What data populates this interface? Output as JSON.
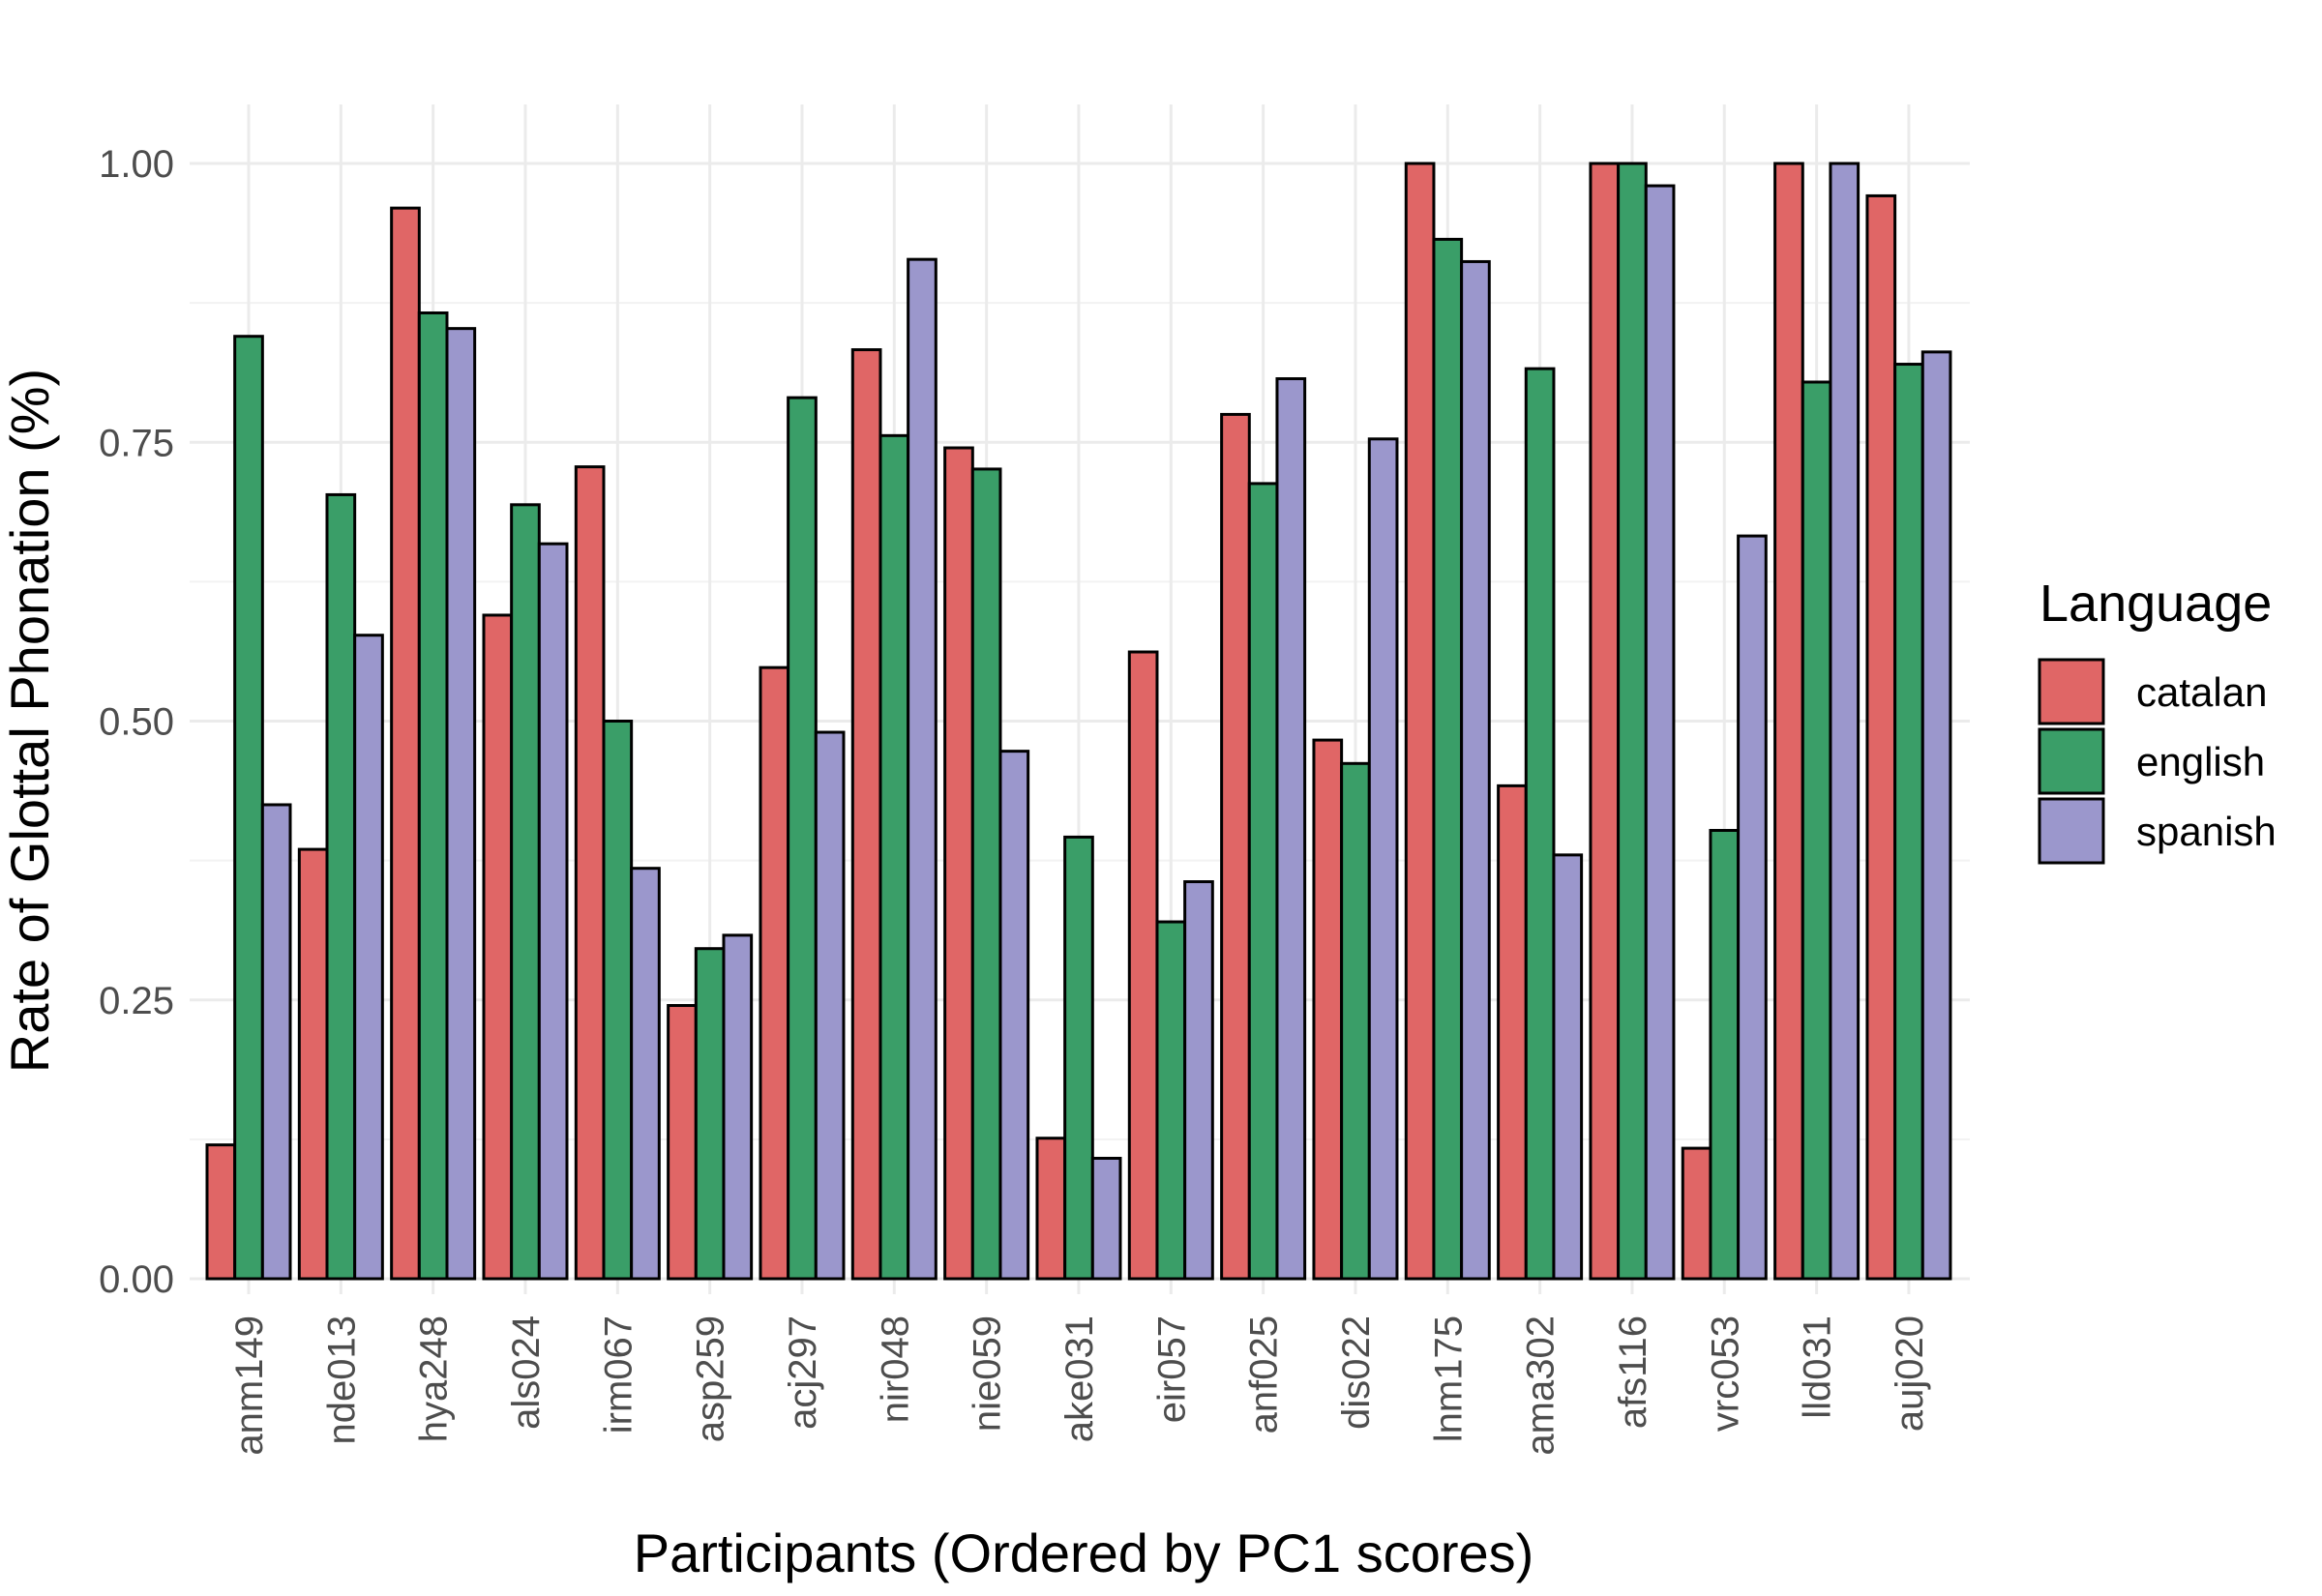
{
  "chart_data": {
    "type": "bar",
    "xlabel": "Participants (Ordered by PC1 scores)",
    "ylabel": "Rate of Glottal Phonation (%)",
    "ylim": [
      0,
      1.0
    ],
    "yticks": [
      "0.00",
      "0.25",
      "0.50",
      "0.75",
      "1.00"
    ],
    "grid": true,
    "legend": {
      "title": "Language",
      "position": "right"
    },
    "categories": [
      "anm149",
      "nde013",
      "hya248",
      "als024",
      "irm067",
      "asp259",
      "acj297",
      "nir048",
      "nie059",
      "ake031",
      "eir057",
      "anf025",
      "dis022",
      "lnm175",
      "ama302",
      "afs116",
      "vrc053",
      "lld031",
      "auj020"
    ],
    "series": [
      {
        "name": "catalan",
        "color": "#e06666",
        "values": [
          0.12,
          0.385,
          0.96,
          0.595,
          0.728,
          0.245,
          0.548,
          0.833,
          0.745,
          0.126,
          0.562,
          0.775,
          0.483,
          1.0,
          0.442,
          1.0,
          0.117,
          1.0,
          0.971
        ]
      },
      {
        "name": "english",
        "color": "#3a9e68",
        "values": [
          0.845,
          0.703,
          0.866,
          0.694,
          0.5,
          0.296,
          0.79,
          0.756,
          0.726,
          0.396,
          0.32,
          0.713,
          0.462,
          0.932,
          0.816,
          1.0,
          0.402,
          0.804,
          0.82
        ]
      },
      {
        "name": "spanish",
        "color": "#9b97cc",
        "values": [
          0.425,
          0.577,
          0.852,
          0.659,
          0.368,
          0.308,
          0.49,
          0.914,
          0.473,
          0.108,
          0.356,
          0.807,
          0.753,
          0.912,
          0.38,
          0.98,
          0.666,
          1.0,
          0.831
        ]
      }
    ]
  }
}
